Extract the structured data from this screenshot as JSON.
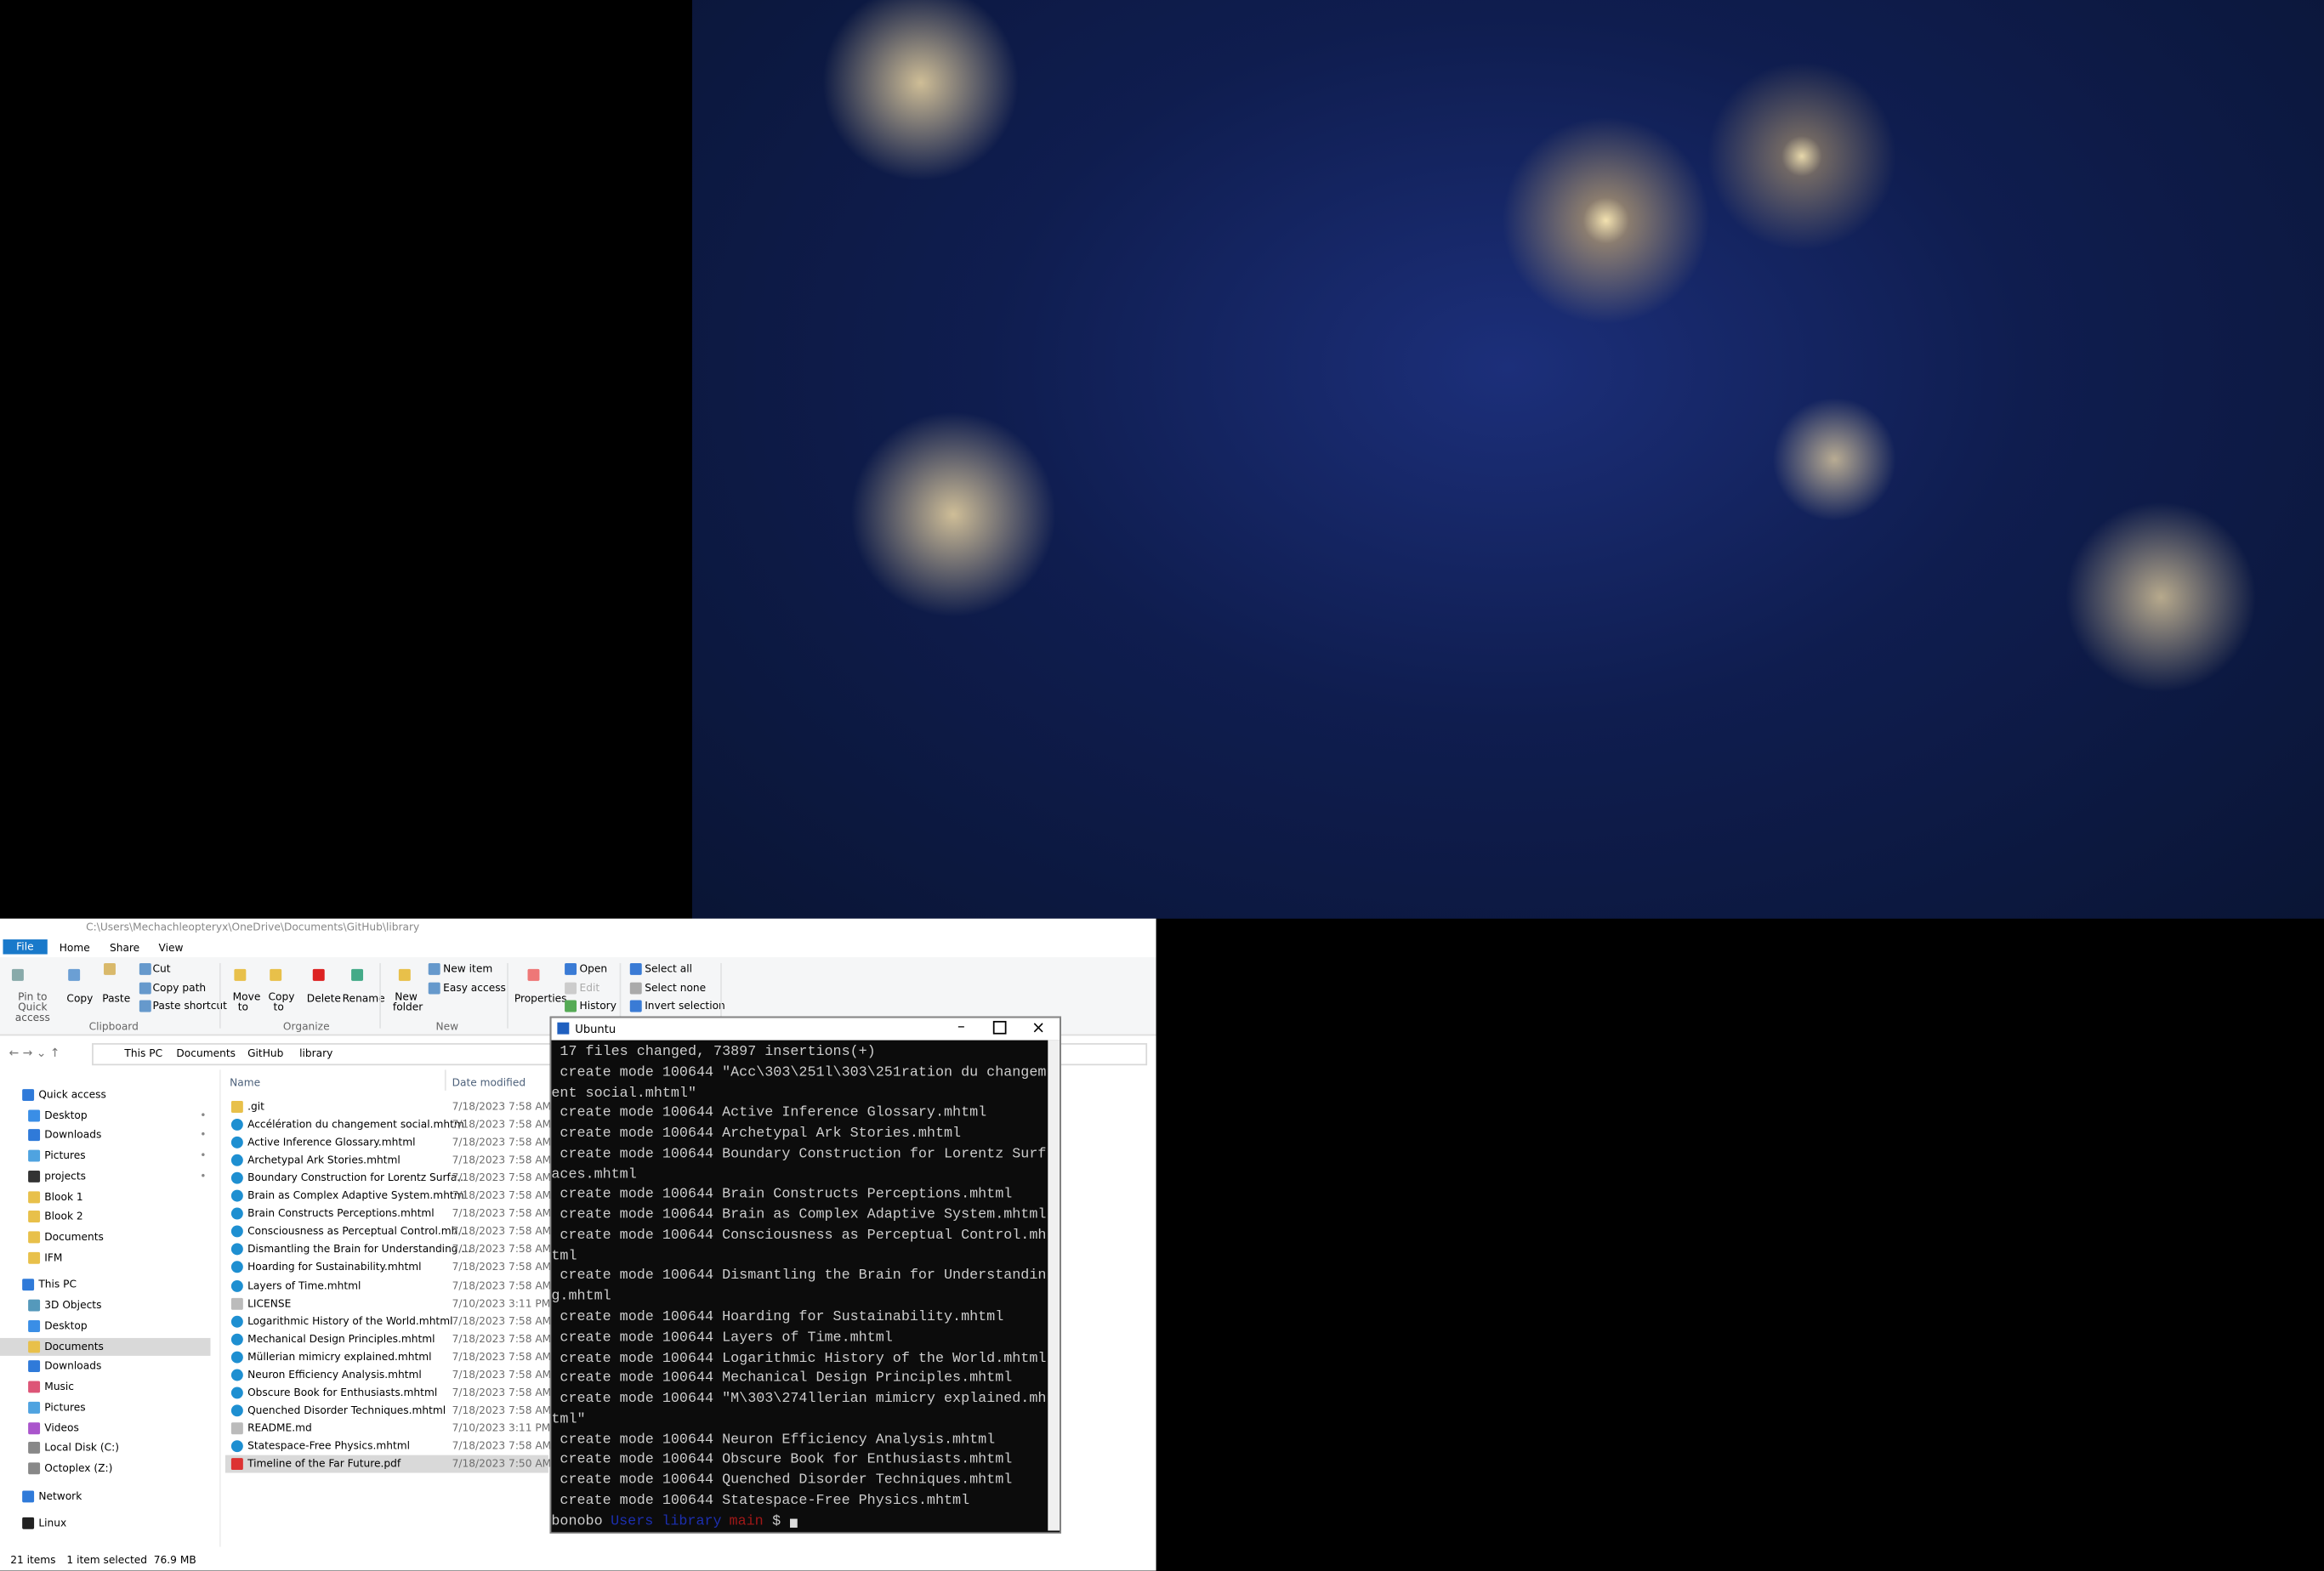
{
  "explorer": {
    "title_path": "C:\\Users\\Mechachleopteryx\\OneDrive\\Documents\\GitHub\\library",
    "tabs": [
      "File",
      "Home",
      "Share",
      "View"
    ],
    "ribbon": {
      "clipboard": {
        "label": "Clipboard",
        "pin": "Pin to Quick access",
        "copy": "Copy",
        "paste": "Paste",
        "cut": "Cut",
        "copy_path": "Copy path",
        "paste_shortcut": "Paste shortcut"
      },
      "organize": {
        "label": "Organize",
        "move_to": "Move to",
        "copy_to": "Copy to",
        "delete": "Delete",
        "rename": "Rename"
      },
      "new": {
        "label": "New",
        "new_folder": "New folder",
        "new_item": "New item",
        "easy_access": "Easy access"
      },
      "open": {
        "properties": "Properties",
        "open": "Open",
        "edit": "Edit",
        "history": "History"
      },
      "select": {
        "select_all": "Select all",
        "select_none": "Select none",
        "invert": "Invert selection"
      }
    },
    "breadcrumbs": [
      "This PC",
      "Documents",
      "GitHub",
      "library"
    ],
    "nav": [
      "Quick access",
      "Desktop",
      "Downloads",
      "Pictures",
      "projects",
      "Blook 1",
      "Blook 2",
      "Documents",
      "IFM",
      "This PC",
      "3D Objects",
      "Desktop",
      "Documents",
      "Downloads",
      "Music",
      "Pictures",
      "Videos",
      "Local Disk (C:)",
      "Octoplex (Z:)",
      "Network",
      "Linux"
    ],
    "columns": [
      "Name",
      "Date modified"
    ],
    "files": [
      [
        ".git",
        "7/18/2023 7:58 AM"
      ],
      [
        "Accélération du changement social.mhtml",
        "7/18/2023 7:58 AM"
      ],
      [
        "Active Inference Glossary.mhtml",
        "7/18/2023 7:58 AM"
      ],
      [
        "Archetypal Ark Stories.mhtml",
        "7/18/2023 7:58 AM"
      ],
      [
        "Boundary Construction for Lorentz Surfa...",
        "7/18/2023 7:58 AM"
      ],
      [
        "Brain as Complex Adaptive System.mhtml",
        "7/18/2023 7:58 AM"
      ],
      [
        "Brain Constructs Perceptions.mhtml",
        "7/18/2023 7:58 AM"
      ],
      [
        "Consciousness as Perceptual Control.mh...",
        "7/18/2023 7:58 AM"
      ],
      [
        "Dismantling the Brain for Understanding....",
        "7/18/2023 7:58 AM"
      ],
      [
        "Hoarding for Sustainability.mhtml",
        "7/18/2023 7:58 AM"
      ],
      [
        "Layers of Time.mhtml",
        "7/18/2023 7:58 AM"
      ],
      [
        "LICENSE",
        "7/10/2023 3:11 PM"
      ],
      [
        "Logarithmic History of the World.mhtml",
        "7/18/2023 7:58 AM"
      ],
      [
        "Mechanical Design Principles.mhtml",
        "7/18/2023 7:58 AM"
      ],
      [
        "Müllerian mimicry explained.mhtml",
        "7/18/2023 7:58 AM"
      ],
      [
        "Neuron Efficiency Analysis.mhtml",
        "7/18/2023 7:58 AM"
      ],
      [
        "Obscure Book for Enthusiasts.mhtml",
        "7/18/2023 7:58 AM"
      ],
      [
        "Quenched Disorder Techniques.mhtml",
        "7/18/2023 7:58 AM"
      ],
      [
        "README.md",
        "7/10/2023 3:11 PM"
      ],
      [
        "Statespace-Free Physics.mhtml",
        "7/18/2023 7:58 AM"
      ],
      [
        "Timeline of the Far Future.pdf",
        "7/18/2023 7:50 AM"
      ]
    ],
    "status": {
      "count": "21 items",
      "selection": "1 item selected  76.9 MB"
    }
  },
  "terminal": {
    "title": "Ubuntu",
    "lines": [
      " 17 files changed, 73897 insertions(+)",
      " create mode 100644 \"Acc\\303\\251l\\303\\251ration du changem",
      "ent social.mhtml\"",
      " create mode 100644 Active Inference Glossary.mhtml",
      " create mode 100644 Archetypal Ark Stories.mhtml",
      " create mode 100644 Boundary Construction for Lorentz Surf",
      "aces.mhtml",
      " create mode 100644 Brain Constructs Perceptions.mhtml",
      " create mode 100644 Brain as Complex Adaptive System.mhtml",
      " create mode 100644 Consciousness as Perceptual Control.mh",
      "tml",
      " create mode 100644 Dismantling the Brain for Understandin",
      "g.mhtml",
      " create mode 100644 Hoarding for Sustainability.mhtml",
      " create mode 100644 Layers of Time.mhtml",
      " create mode 100644 Logarithmic History of the World.mhtml",
      " create mode 100644 Mechanical Design Principles.mhtml",
      " create mode 100644 \"M\\303\\274llerian mimicry explained.mh",
      "tml\"",
      " create mode 100644 Neuron Efficiency Analysis.mhtml",
      " create mode 100644 Obscure Book for Enthusiasts.mhtml",
      " create mode 100644 Quenched Disorder Techniques.mhtml",
      " create mode 100644 Statespace-Free Physics.mhtml"
    ],
    "prompt": {
      "user": "bonobo",
      "path": "Users library",
      "branch": "main",
      "symbol": "$"
    }
  }
}
